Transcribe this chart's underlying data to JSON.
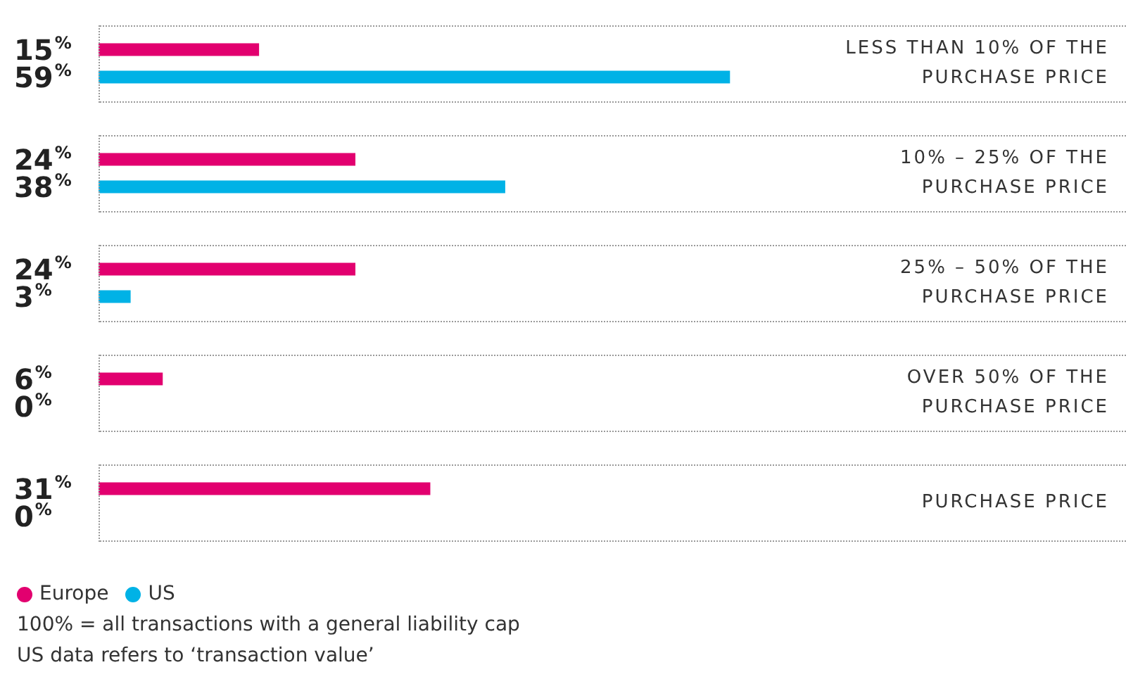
{
  "chart_data": {
    "type": "bar",
    "orientation": "horizontal",
    "categories": [
      "LESS THAN 10% OF THE PURCHASE PRICE",
      "10% – 25% OF THE PURCHASE PRICE",
      "25% – 50% OF THE PURCHASE PRICE",
      "OVER 50% OF THE PURCHASE PRICE",
      "PURCHASE PRICE"
    ],
    "series": [
      {
        "name": "Europe",
        "color": "#e2006f",
        "values": [
          15,
          24,
          24,
          6,
          31
        ],
        "value_labels": [
          "15%",
          "24%",
          "24%",
          "6%",
          "31%"
        ]
      },
      {
        "name": "US",
        "color": "#00b2e6",
        "values": [
          59,
          38,
          3,
          0,
          0
        ],
        "value_labels": [
          "59%",
          "38%",
          "3%",
          "0%",
          "0%"
        ]
      }
    ],
    "xlim": [
      0,
      96
    ],
    "grid": false,
    "legend": "bottom left",
    "annotations": [
      "100% = all transactions with a general liability cap",
      "US data refers to ‘transaction value’"
    ]
  }
}
